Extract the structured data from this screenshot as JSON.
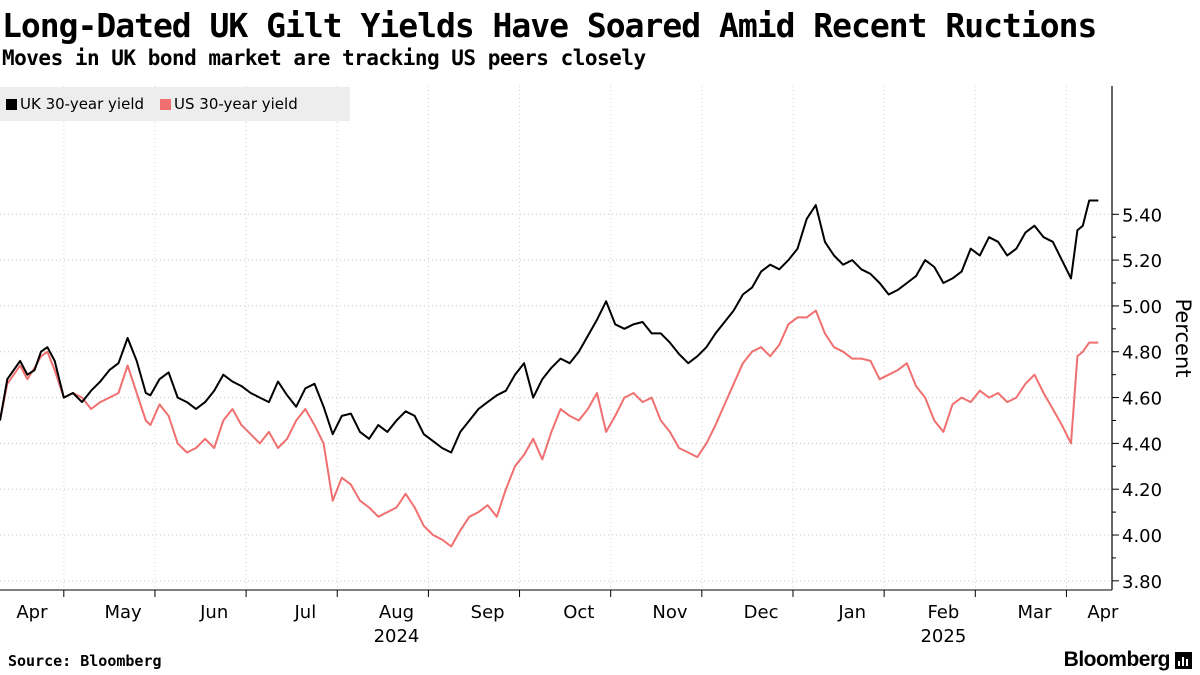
{
  "chart_data": {
    "type": "line",
    "title": "Long-Dated UK Gilt Yields Have Soared Amid Recent Ructions",
    "subtitle": "Moves in UK bond market are tracking US peers closely",
    "ylabel": "Percent",
    "ylim": [
      3.76,
      5.96
    ],
    "yticks": [
      "3.80",
      "4.00",
      "4.20",
      "4.40",
      "4.60",
      "4.80",
      "5.00",
      "5.20",
      "5.40"
    ],
    "x_range": [
      0,
      12.2
    ],
    "xticks": [
      {
        "label": "Apr",
        "pos": 0.35
      },
      {
        "label": "May",
        "pos": 1.35
      },
      {
        "label": "Jun",
        "pos": 2.35
      },
      {
        "label": "Jul",
        "pos": 3.35
      },
      {
        "label": "Aug",
        "pos": 4.35
      },
      {
        "label": "Sep",
        "pos": 5.35
      },
      {
        "label": "Oct",
        "pos": 6.35
      },
      {
        "label": "Nov",
        "pos": 7.35
      },
      {
        "label": "Dec",
        "pos": 8.35
      },
      {
        "label": "Jan",
        "pos": 9.35
      },
      {
        "label": "Feb",
        "pos": 10.35
      },
      {
        "label": "Mar",
        "pos": 11.35
      },
      {
        "label": "Apr",
        "pos": 12.1
      }
    ],
    "month_boundaries": [
      0.7,
      1.7,
      2.7,
      3.7,
      4.7,
      5.7,
      6.7,
      7.7,
      8.7,
      9.7,
      10.7,
      11.7
    ],
    "year_labels": [
      {
        "label": "2024",
        "pos": 4.35
      },
      {
        "label": "2025",
        "pos": 10.35
      }
    ],
    "legend": "top-left",
    "series": [
      {
        "name": "UK 30-year yield",
        "color": "#000000",
        "x": [
          0.0,
          0.08,
          0.15,
          0.22,
          0.3,
          0.38,
          0.45,
          0.52,
          0.6,
          0.7,
          0.8,
          0.9,
          1.0,
          1.1,
          1.2,
          1.3,
          1.4,
          1.5,
          1.6,
          1.65,
          1.75,
          1.85,
          1.95,
          2.05,
          2.15,
          2.25,
          2.35,
          2.45,
          2.55,
          2.65,
          2.75,
          2.85,
          2.95,
          3.05,
          3.15,
          3.25,
          3.35,
          3.45,
          3.55,
          3.65,
          3.75,
          3.85,
          3.95,
          4.05,
          4.15,
          4.25,
          4.35,
          4.45,
          4.55,
          4.65,
          4.75,
          4.85,
          4.95,
          5.05,
          5.15,
          5.25,
          5.35,
          5.45,
          5.55,
          5.65,
          5.75,
          5.85,
          5.95,
          6.05,
          6.15,
          6.25,
          6.35,
          6.45,
          6.55,
          6.65,
          6.75,
          6.85,
          6.95,
          7.05,
          7.15,
          7.25,
          7.35,
          7.45,
          7.55,
          7.65,
          7.75,
          7.85,
          7.95,
          8.05,
          8.15,
          8.25,
          8.35,
          8.45,
          8.55,
          8.65,
          8.75,
          8.85,
          8.95,
          9.05,
          9.15,
          9.25,
          9.35,
          9.45,
          9.55,
          9.65,
          9.75,
          9.85,
          9.95,
          10.05,
          10.15,
          10.25,
          10.35,
          10.45,
          10.55,
          10.65,
          10.75,
          10.85,
          10.95,
          11.05,
          11.15,
          11.25,
          11.35,
          11.45,
          11.55,
          11.65,
          11.75,
          11.82,
          11.88,
          11.95,
          12.05
        ],
        "values": [
          4.5,
          4.68,
          4.72,
          4.76,
          4.7,
          4.72,
          4.8,
          4.82,
          4.76,
          4.6,
          4.62,
          4.58,
          4.63,
          4.67,
          4.72,
          4.75,
          4.86,
          4.76,
          4.62,
          4.61,
          4.68,
          4.71,
          4.6,
          4.58,
          4.55,
          4.58,
          4.63,
          4.7,
          4.67,
          4.65,
          4.62,
          4.6,
          4.58,
          4.67,
          4.61,
          4.56,
          4.64,
          4.66,
          4.56,
          4.44,
          4.52,
          4.53,
          4.45,
          4.42,
          4.48,
          4.45,
          4.5,
          4.54,
          4.52,
          4.44,
          4.41,
          4.38,
          4.36,
          4.45,
          4.5,
          4.55,
          4.58,
          4.61,
          4.63,
          4.7,
          4.75,
          4.6,
          4.68,
          4.73,
          4.77,
          4.75,
          4.8,
          4.87,
          4.94,
          5.02,
          4.92,
          4.9,
          4.92,
          4.93,
          4.88,
          4.88,
          4.84,
          4.79,
          4.75,
          4.78,
          4.82,
          4.88,
          4.93,
          4.98,
          5.05,
          5.08,
          5.15,
          5.18,
          5.16,
          5.2,
          5.25,
          5.38,
          5.44,
          5.28,
          5.22,
          5.18,
          5.2,
          5.16,
          5.14,
          5.1,
          5.05,
          5.07,
          5.1,
          5.13,
          5.2,
          5.17,
          5.1,
          5.12,
          5.15,
          5.25,
          5.22,
          5.3,
          5.28,
          5.22,
          5.25,
          5.32,
          5.35,
          5.3,
          5.28,
          5.2,
          5.12,
          5.33,
          5.35,
          5.46,
          5.46
        ]
      },
      {
        "name": "US 30-year yield",
        "color": "#f07070",
        "x": [
          0.0,
          0.08,
          0.15,
          0.22,
          0.3,
          0.38,
          0.45,
          0.52,
          0.6,
          0.7,
          0.8,
          0.9,
          1.0,
          1.1,
          1.2,
          1.3,
          1.4,
          1.5,
          1.6,
          1.65,
          1.75,
          1.85,
          1.95,
          2.05,
          2.15,
          2.25,
          2.35,
          2.45,
          2.55,
          2.65,
          2.75,
          2.85,
          2.95,
          3.05,
          3.15,
          3.25,
          3.35,
          3.45,
          3.55,
          3.65,
          3.75,
          3.85,
          3.95,
          4.05,
          4.15,
          4.25,
          4.35,
          4.45,
          4.55,
          4.65,
          4.75,
          4.85,
          4.95,
          5.05,
          5.15,
          5.25,
          5.35,
          5.45,
          5.55,
          5.65,
          5.75,
          5.85,
          5.95,
          6.05,
          6.15,
          6.25,
          6.35,
          6.45,
          6.55,
          6.65,
          6.75,
          6.85,
          6.95,
          7.05,
          7.15,
          7.25,
          7.35,
          7.45,
          7.55,
          7.65,
          7.75,
          7.85,
          7.95,
          8.05,
          8.15,
          8.25,
          8.35,
          8.45,
          8.55,
          8.65,
          8.75,
          8.85,
          8.95,
          9.05,
          9.15,
          9.25,
          9.35,
          9.45,
          9.55,
          9.65,
          9.75,
          9.85,
          9.95,
          10.05,
          10.15,
          10.25,
          10.35,
          10.45,
          10.55,
          10.65,
          10.75,
          10.85,
          10.95,
          11.05,
          11.15,
          11.25,
          11.35,
          11.45,
          11.55,
          11.65,
          11.75,
          11.82,
          11.88,
          11.95,
          12.05
        ],
        "values": [
          4.5,
          4.66,
          4.7,
          4.74,
          4.68,
          4.73,
          4.78,
          4.8,
          4.72,
          4.6,
          4.62,
          4.6,
          4.55,
          4.58,
          4.6,
          4.62,
          4.74,
          4.62,
          4.5,
          4.48,
          4.57,
          4.52,
          4.4,
          4.36,
          4.38,
          4.42,
          4.38,
          4.5,
          4.55,
          4.48,
          4.44,
          4.4,
          4.45,
          4.38,
          4.42,
          4.5,
          4.55,
          4.48,
          4.4,
          4.15,
          4.25,
          4.22,
          4.15,
          4.12,
          4.08,
          4.1,
          4.12,
          4.18,
          4.12,
          4.04,
          4.0,
          3.98,
          3.95,
          4.02,
          4.08,
          4.1,
          4.13,
          4.08,
          4.2,
          4.3,
          4.35,
          4.42,
          4.33,
          4.45,
          4.55,
          4.52,
          4.5,
          4.55,
          4.62,
          4.45,
          4.52,
          4.6,
          4.62,
          4.58,
          4.6,
          4.5,
          4.45,
          4.38,
          4.36,
          4.34,
          4.4,
          4.48,
          4.57,
          4.66,
          4.75,
          4.8,
          4.82,
          4.78,
          4.83,
          4.92,
          4.95,
          4.95,
          4.98,
          4.88,
          4.82,
          4.8,
          4.77,
          4.77,
          4.76,
          4.68,
          4.7,
          4.72,
          4.75,
          4.65,
          4.6,
          4.5,
          4.45,
          4.57,
          4.6,
          4.58,
          4.63,
          4.6,
          4.62,
          4.58,
          4.6,
          4.66,
          4.7,
          4.62,
          4.55,
          4.48,
          4.4,
          4.78,
          4.8,
          4.84,
          4.84
        ]
      }
    ]
  },
  "source": "Source: Bloomberg",
  "logo": "Bloomberg"
}
